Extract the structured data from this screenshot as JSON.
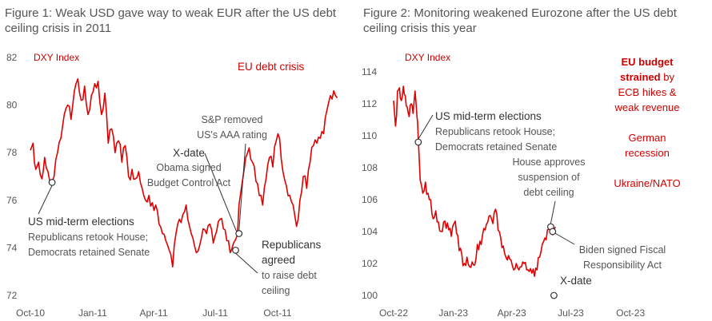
{
  "colors": {
    "series": "#e00000",
    "annotation_red": "#d00000",
    "text": "#555555"
  },
  "chart_data": [
    {
      "type": "line",
      "title": "Figure 1: Weak USD gave way to weak EUR after the US debt ceiling crisis in 2011",
      "ylim": [
        72,
        82
      ],
      "yticks": [
        "72",
        "74",
        "76",
        "78",
        "80",
        "82"
      ],
      "xlim": [
        "2010-10-01",
        "2011-12-31"
      ],
      "xticks": [
        {
          "label": "Oct-10",
          "date": "2010-10-01"
        },
        {
          "label": "Jan-11",
          "date": "2011-01-01"
        },
        {
          "label": "Apr-11",
          "date": "2011-04-01"
        },
        {
          "label": "Jul-11",
          "date": "2011-07-01"
        },
        {
          "label": "Oct-11",
          "date": "2011-10-01"
        }
      ],
      "series_label": "DXY Index",
      "series": [
        {
          "x": [
            "2010-10-01",
            "2010-10-05",
            "2010-10-09",
            "2010-10-13",
            "2010-10-18",
            "2010-10-22",
            "2010-10-27",
            "2010-11-01",
            "2010-11-05",
            "2010-11-10",
            "2010-11-15",
            "2010-11-20",
            "2010-11-25",
            "2010-11-30",
            "2010-12-05",
            "2010-12-10",
            "2010-12-15",
            "2010-12-20",
            "2010-12-25",
            "2010-12-30",
            "2011-01-04",
            "2011-01-09",
            "2011-01-14",
            "2011-01-19",
            "2011-01-24",
            "2011-01-29",
            "2011-02-03",
            "2011-02-08",
            "2011-02-13",
            "2011-02-18",
            "2011-02-23",
            "2011-02-28",
            "2011-03-05",
            "2011-03-10",
            "2011-03-15",
            "2011-03-20",
            "2011-03-25",
            "2011-03-30",
            "2011-04-04",
            "2011-04-09",
            "2011-04-14",
            "2011-04-19",
            "2011-04-24",
            "2011-04-29",
            "2011-05-04",
            "2011-05-09",
            "2011-05-14",
            "2011-05-19",
            "2011-05-24",
            "2011-05-29",
            "2011-06-03",
            "2011-06-08",
            "2011-06-13",
            "2011-06-18",
            "2011-06-23",
            "2011-06-28",
            "2011-07-03",
            "2011-07-08",
            "2011-07-13",
            "2011-07-18",
            "2011-07-23",
            "2011-07-28",
            "2011-08-02",
            "2011-08-05",
            "2011-08-10",
            "2011-08-15",
            "2011-08-20",
            "2011-08-25",
            "2011-08-30",
            "2011-09-04",
            "2011-09-09",
            "2011-09-14",
            "2011-09-19",
            "2011-09-24",
            "2011-09-29",
            "2011-10-04",
            "2011-10-09",
            "2011-10-14",
            "2011-10-19",
            "2011-10-24",
            "2011-10-29",
            "2011-11-03",
            "2011-11-08",
            "2011-11-13",
            "2011-11-18",
            "2011-11-23",
            "2011-11-28",
            "2011-12-03",
            "2011-12-08",
            "2011-12-13",
            "2011-12-18",
            "2011-12-23",
            "2011-12-28"
          ],
          "y": [
            78.1,
            78.4,
            77.3,
            77.6,
            76.9,
            77.8,
            77.2,
            76.8,
            77.0,
            78.0,
            78.6,
            79.6,
            80.0,
            79.4,
            80.6,
            81.1,
            80.2,
            80.8,
            79.6,
            80.4,
            80.9,
            81.0,
            79.6,
            80.5,
            78.4,
            79.0,
            78.0,
            78.5,
            77.6,
            78.3,
            77.0,
            77.3,
            76.9,
            77.2,
            76.5,
            76.0,
            76.2,
            75.9,
            75.8,
            75.0,
            74.6,
            74.3,
            73.9,
            73.2,
            74.6,
            75.2,
            75.4,
            75.8,
            74.9,
            74.4,
            73.8,
            74.1,
            74.8,
            74.6,
            75.0,
            74.2,
            74.7,
            75.2,
            74.8,
            74.3,
            73.8,
            74.2,
            74.5,
            75.8,
            76.8,
            77.8,
            78.2,
            77.6,
            76.8,
            76.2,
            75.8,
            76.9,
            77.8,
            77.4,
            78.5,
            78.6,
            77.2,
            76.6,
            76.2,
            75.8,
            74.9,
            76.0,
            77.0,
            76.5,
            77.6,
            78.3,
            78.4,
            78.6,
            78.8,
            79.8,
            80.4,
            80.6,
            80.3
          ]
        }
      ],
      "annotations": {
        "us_midterm": {
          "title": "US mid-term elections",
          "line1": "Republicans retook House;",
          "line2": "Democrats retained Senate",
          "x": "2010-11-02",
          "y": 76.75
        },
        "eu_debt": {
          "text": "EU debt crisis"
        },
        "xdate": {
          "title": "X-date",
          "line1": "Obama signed",
          "line2": "Budget Control Act",
          "x": "2011-08-02",
          "y": 74.6
        },
        "sp": {
          "line1": "S&P removed",
          "line2": "US's AAA rating",
          "x": "2011-08-05",
          "y": 74.6
        },
        "republicans": {
          "line1": "Republicans",
          "line2": "agreed",
          "line3": "to raise debt",
          "line4": "ceiling",
          "x": "2011-07-31",
          "y": 73.9
        }
      }
    },
    {
      "type": "line",
      "title": "Figure 2: Monitoring weakened Eurozone after the US debt ceiling crisis this year",
      "ylim": [
        100,
        114
      ],
      "yticks": [
        "100",
        "102",
        "104",
        "106",
        "108",
        "110",
        "112",
        "114"
      ],
      "xlim": [
        "2022-10-01",
        "2023-12-31"
      ],
      "xticks": [
        {
          "label": "Oct-22",
          "date": "2022-10-01"
        },
        {
          "label": "Jan-23",
          "date": "2023-01-01"
        },
        {
          "label": "Apr-23",
          "date": "2023-04-01"
        },
        {
          "label": "Jul-23",
          "date": "2023-07-01"
        },
        {
          "label": "Oct-23",
          "date": "2023-10-01"
        }
      ],
      "series_label": "DXY Index",
      "series": [
        {
          "x": [
            "2022-10-01",
            "2022-10-04",
            "2022-10-07",
            "2022-10-10",
            "2022-10-13",
            "2022-10-16",
            "2022-10-19",
            "2022-10-22",
            "2022-10-25",
            "2022-10-28",
            "2022-10-31",
            "2022-11-03",
            "2022-11-06",
            "2022-11-08",
            "2022-11-11",
            "2022-11-15",
            "2022-11-19",
            "2022-11-23",
            "2022-11-27",
            "2022-12-01",
            "2022-12-05",
            "2022-12-09",
            "2022-12-13",
            "2022-12-17",
            "2022-12-21",
            "2022-12-25",
            "2022-12-29",
            "2023-01-02",
            "2023-01-06",
            "2023-01-10",
            "2023-01-14",
            "2023-01-18",
            "2023-01-22",
            "2023-01-26",
            "2023-01-30",
            "2023-02-03",
            "2023-02-07",
            "2023-02-11",
            "2023-02-15",
            "2023-02-19",
            "2023-02-23",
            "2023-02-27",
            "2023-03-03",
            "2023-03-07",
            "2023-03-11",
            "2023-03-15",
            "2023-03-19",
            "2023-03-23",
            "2023-03-27",
            "2023-03-31",
            "2023-04-04",
            "2023-04-08",
            "2023-04-12",
            "2023-04-16",
            "2023-04-20",
            "2023-04-24",
            "2023-04-28",
            "2023-05-02",
            "2023-05-06",
            "2023-05-10",
            "2023-05-14",
            "2023-05-18",
            "2023-05-22",
            "2023-05-26",
            "2023-05-30",
            "2023-06-03",
            "2023-06-07"
          ],
          "y": [
            112.2,
            110.6,
            112.8,
            113.0,
            112.2,
            113.1,
            112.5,
            111.8,
            111.2,
            112.0,
            111.4,
            112.8,
            111.2,
            109.8,
            107.2,
            106.4,
            107.1,
            106.4,
            106.0,
            104.8,
            105.3,
            104.6,
            104.0,
            104.6,
            104.2,
            104.1,
            103.7,
            104.5,
            103.9,
            102.8,
            102.6,
            102.0,
            102.4,
            101.8,
            102.1,
            101.9,
            103.2,
            103.4,
            103.8,
            104.1,
            104.6,
            105.0,
            104.5,
            105.4,
            104.1,
            103.6,
            103.1,
            102.4,
            102.5,
            102.2,
            101.6,
            102.0,
            101.6,
            101.8,
            102.0,
            101.6,
            101.5,
            101.4,
            101.2,
            101.6,
            102.4,
            103.2,
            103.6,
            104.1,
            104.2,
            103.8,
            104.3
          ]
        }
      ],
      "annotations": {
        "us_midterm": {
          "title": "US mid-term elections",
          "line1": "Republicans retook House;",
          "line2": "Democrats retained Senate",
          "x": "2022-11-08",
          "y": 109.6
        },
        "house": {
          "line1": "House approves",
          "line2": "suspension of",
          "line3": "debt ceiling",
          "x": "2023-05-31",
          "y": 104.3
        },
        "biden": {
          "line1": "Biden signed Fiscal",
          "line2": "Responsibility Act",
          "x": "2023-06-03",
          "y": 104.0
        },
        "xdate": {
          "title": "X-date",
          "x": "2023-06-05",
          "y": 100.0
        },
        "eu_budget": {
          "bold1": "EU budget",
          "bold2": "strained",
          "rest1": " by",
          "line3": "ECB hikes &",
          "line4": "weak revenue"
        },
        "german": {
          "line1": "German",
          "line2": "recession"
        },
        "ukraine": {
          "text": "Ukraine/NATO"
        }
      }
    }
  ]
}
